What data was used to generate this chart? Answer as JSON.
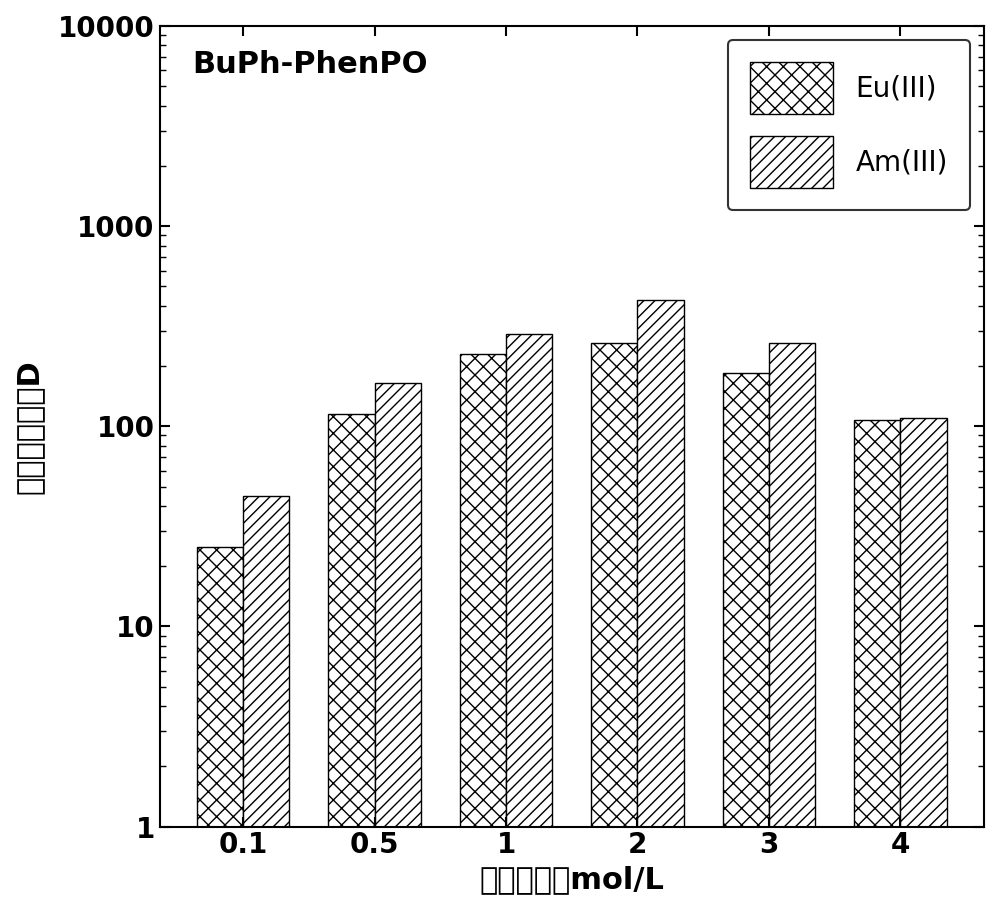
{
  "title": "BuPh-PhenPO",
  "xlabel": "硝酸浓度，mol/L",
  "ylabel": "萌取分配比，D",
  "categories": [
    "0.1",
    "0.5",
    "1",
    "2",
    "3",
    "4"
  ],
  "eu_values": [
    25,
    115,
    230,
    260,
    185,
    107
  ],
  "am_values": [
    45,
    165,
    290,
    430,
    260,
    110
  ],
  "ylim": [
    1,
    10000
  ],
  "bar_width": 0.35,
  "eu_hatch": "xx",
  "am_hatch": "///",
  "bar_facecolor": "white",
  "bar_edgecolor": "black",
  "legend_labels": [
    "Eu(III)",
    "Am(III)"
  ],
  "title_fontsize": 22,
  "label_fontsize": 22,
  "tick_fontsize": 20,
  "legend_fontsize": 20
}
